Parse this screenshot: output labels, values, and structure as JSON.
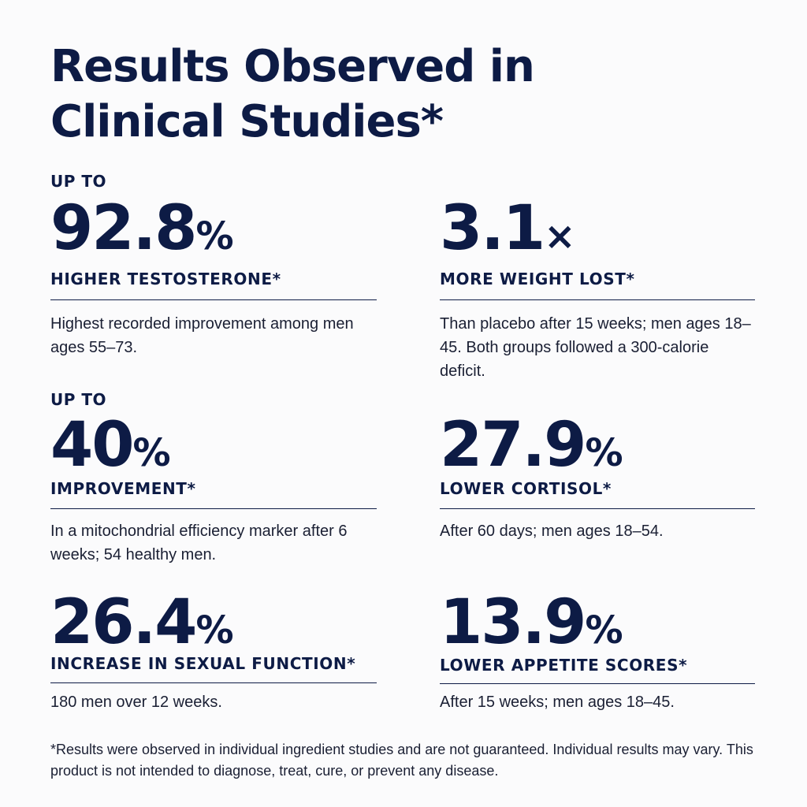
{
  "title": "Results Observed in Clinical Studies*",
  "stats": [
    {
      "prefix": "UP TO",
      "value": "92.8",
      "unit": "%",
      "label": "HIGHER TESTOSTERONE*",
      "description": "Highest recorded improvement among men ages 55–73."
    },
    {
      "prefix": "",
      "value": "3.1",
      "unit": "×",
      "label": "MORE WEIGHT LOST*",
      "description": "Than placebo after 15 weeks; men ages 18–45. Both groups followed a 300-calorie deficit."
    },
    {
      "prefix": "UP TO",
      "value": "40",
      "unit": "%",
      "label": "IMPROVEMENT*",
      "description": "In a mitochondrial efficiency marker after 6 weeks; 54 healthy men."
    },
    {
      "prefix": "",
      "value": "27.9",
      "unit": "%",
      "label": "LOWER CORTISOL*",
      "description": "After 60 days; men ages 18–54."
    },
    {
      "prefix": "",
      "value": "26.4",
      "unit": "%",
      "label": "INCREASE IN SEXUAL FUNCTION*",
      "description": "180 men over 12 weeks."
    },
    {
      "prefix": "",
      "value": "13.9",
      "unit": "%",
      "label": "LOWER APPETITE SCORES*",
      "description": "After 15 weeks; men ages 18–45."
    }
  ],
  "footnote": "*Results were observed in individual ingredient studies and are not guaranteed. Individual results may vary. This product is not intended to diagnose, treat, cure, or prevent any disease."
}
